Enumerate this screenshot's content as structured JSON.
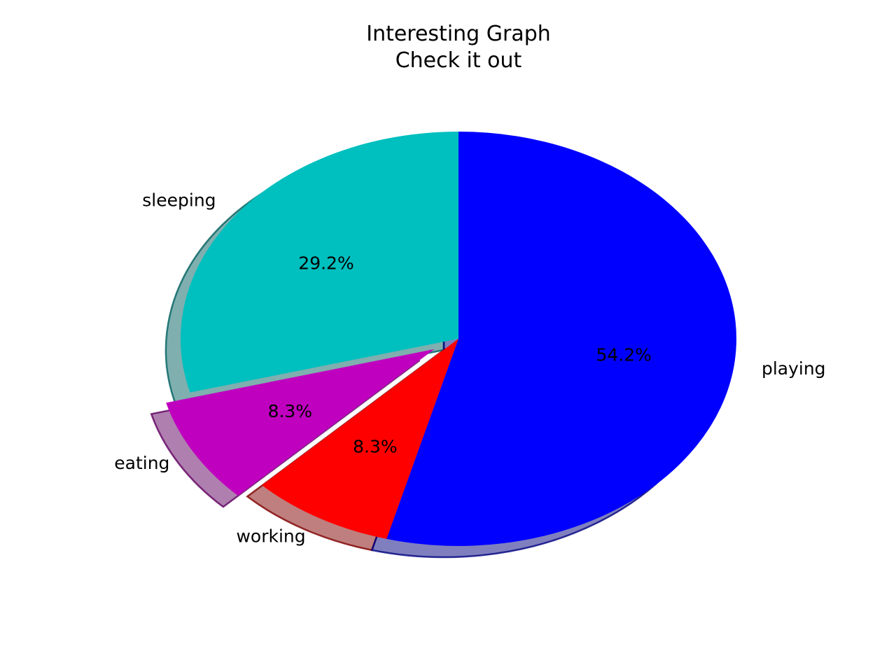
{
  "chart_data": {
    "type": "pie",
    "title": "Interesting Graph",
    "subtitle": "Check it out",
    "categories": [
      "sleeping",
      "eating",
      "working",
      "playing"
    ],
    "values": [
      7,
      2,
      2,
      13
    ],
    "percent_labels": [
      "29.2%",
      "8.3%",
      "8.3%",
      "54.2%"
    ],
    "colors": [
      "#00bfbf",
      "#bf00bf",
      "#ff0000",
      "#0000ff"
    ],
    "explode": [
      0,
      0.1,
      0,
      0
    ],
    "start_angle_deg": 90,
    "shadow": true,
    "legend": "none"
  }
}
